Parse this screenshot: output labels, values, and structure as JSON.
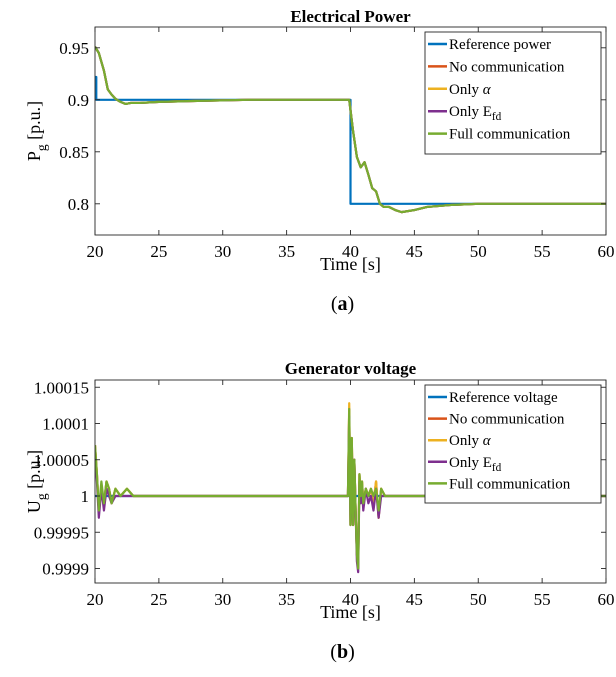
{
  "colors": {
    "reference": "#0072BD",
    "no_comm": "#D95319",
    "only_alpha": "#EDB120",
    "only_efd": "#7E2F8E",
    "full_comm": "#77AC30",
    "axis": "#262626"
  },
  "panels": [
    {
      "caption": "(a)",
      "caption_bold": "a",
      "chart_data": {
        "type": "line",
        "title": "Electrical Power",
        "xlabel": "Time [s]",
        "ylabel": "P_g [p.u.]",
        "xlim": [
          20,
          60
        ],
        "ylim": [
          0.77,
          0.97
        ],
        "xticks": [
          20,
          25,
          30,
          35,
          40,
          45,
          50,
          55,
          60
        ],
        "xtick_labels": [
          "20",
          "25",
          "30",
          "35",
          "40",
          "45",
          "50",
          "55",
          "60"
        ],
        "yticks": [
          0.8,
          0.85,
          0.9,
          0.95
        ],
        "ytick_labels": [
          "0.8",
          "0.85",
          "0.9",
          "0.95"
        ],
        "grid": false,
        "legend_position": "top-right",
        "series": [
          {
            "name": "Reference power",
            "key": "reference",
            "x": [
              20,
              20.1,
              20.1,
              40,
              40,
              60
            ],
            "y": [
              0.922,
              0.922,
              0.9,
              0.9,
              0.8,
              0.8
            ]
          },
          {
            "name": "No communication",
            "key": "no_comm",
            "x": [
              20,
              20.3,
              20.7,
              21.0,
              21.3,
              21.6,
              22.0,
              22.4,
              22.8,
              23.5,
              25,
              28,
              32,
              36,
              39.9,
              40.2,
              40.5,
              40.8,
              41.1,
              41.4,
              41.7,
              42.0,
              42.3,
              42.6,
              43.0,
              43.5,
              44,
              45,
              46,
              48,
              50,
              55,
              60
            ],
            "y": [
              0.951,
              0.945,
              0.928,
              0.91,
              0.905,
              0.901,
              0.898,
              0.896,
              0.897,
              0.897,
              0.898,
              0.899,
              0.9,
              0.9,
              0.9,
              0.87,
              0.845,
              0.835,
              0.84,
              0.828,
              0.815,
              0.812,
              0.8,
              0.797,
              0.797,
              0.794,
              0.792,
              0.794,
              0.797,
              0.799,
              0.8,
              0.8,
              0.8
            ]
          },
          {
            "name": "Only α",
            "key": "only_alpha",
            "x": [
              20,
              20.3,
              20.7,
              21.0,
              21.3,
              21.6,
              22.0,
              22.4,
              22.8,
              23.5,
              25,
              28,
              32,
              36,
              39.9,
              40.2,
              40.5,
              40.8,
              41.1,
              41.4,
              41.7,
              42.0,
              42.3,
              42.6,
              43.0,
              43.5,
              44,
              45,
              46,
              48,
              50,
              55,
              60
            ],
            "y": [
              0.951,
              0.945,
              0.928,
              0.91,
              0.905,
              0.901,
              0.898,
              0.896,
              0.897,
              0.897,
              0.898,
              0.899,
              0.9,
              0.9,
              0.9,
              0.87,
              0.845,
              0.835,
              0.84,
              0.828,
              0.815,
              0.812,
              0.8,
              0.797,
              0.797,
              0.794,
              0.792,
              0.794,
              0.797,
              0.799,
              0.8,
              0.8,
              0.8
            ]
          },
          {
            "name": "Only E_fd",
            "key": "only_efd",
            "x": [
              20,
              20.3,
              20.7,
              21.0,
              21.3,
              21.6,
              22.0,
              22.4,
              22.8,
              23.5,
              25,
              28,
              32,
              36,
              39.9,
              40.2,
              40.5,
              40.8,
              41.1,
              41.4,
              41.7,
              42.0,
              42.3,
              42.6,
              43.0,
              43.5,
              44,
              45,
              46,
              48,
              50,
              55,
              60
            ],
            "y": [
              0.951,
              0.945,
              0.928,
              0.91,
              0.905,
              0.901,
              0.898,
              0.896,
              0.897,
              0.897,
              0.898,
              0.899,
              0.9,
              0.9,
              0.9,
              0.87,
              0.845,
              0.835,
              0.84,
              0.828,
              0.815,
              0.812,
              0.8,
              0.797,
              0.797,
              0.794,
              0.792,
              0.794,
              0.797,
              0.799,
              0.8,
              0.8,
              0.8
            ]
          },
          {
            "name": "Full communication",
            "key": "full_comm",
            "x": [
              20,
              20.3,
              20.7,
              21.0,
              21.3,
              21.6,
              22.0,
              22.4,
              22.8,
              23.5,
              25,
              28,
              32,
              36,
              39.9,
              40.2,
              40.5,
              40.8,
              41.1,
              41.4,
              41.7,
              42.0,
              42.3,
              42.6,
              43.0,
              43.5,
              44,
              45,
              46,
              48,
              50,
              55,
              60
            ],
            "y": [
              0.951,
              0.945,
              0.928,
              0.91,
              0.905,
              0.901,
              0.898,
              0.896,
              0.897,
              0.897,
              0.898,
              0.899,
              0.9,
              0.9,
              0.9,
              0.87,
              0.845,
              0.835,
              0.84,
              0.828,
              0.815,
              0.812,
              0.8,
              0.797,
              0.797,
              0.794,
              0.792,
              0.794,
              0.797,
              0.799,
              0.8,
              0.8,
              0.8
            ]
          }
        ]
      }
    },
    {
      "caption": "(b)",
      "caption_bold": "b",
      "chart_data": {
        "type": "line",
        "title": "Generator voltage",
        "xlabel": "Time [s]",
        "ylabel": "U_g [p.u.]",
        "xlim": [
          20,
          60
        ],
        "ylim": [
          0.99988,
          1.00016
        ],
        "xticks": [
          20,
          25,
          30,
          35,
          40,
          45,
          50,
          55,
          60
        ],
        "xtick_labels": [
          "20",
          "25",
          "30",
          "35",
          "40",
          "45",
          "50",
          "55",
          "60"
        ],
        "yticks": [
          0.9999,
          0.99995,
          1.0,
          1.00005,
          1.0001,
          1.00015
        ],
        "ytick_labels": [
          "0.9999",
          "0.99995",
          "1",
          "1.00005",
          "1.0001",
          "1.00015"
        ],
        "grid": false,
        "legend_position": "top-right",
        "series": [
          {
            "name": "Reference voltage",
            "key": "reference",
            "x": [
              20,
              60
            ],
            "y": [
              1.0,
              1.0
            ]
          },
          {
            "name": "No communication",
            "key": "no_comm",
            "x": [
              20,
              20.15,
              20.3,
              20.5,
              20.7,
              20.9,
              21.1,
              21.3,
              21.6,
              22.0,
              22.5,
              23,
              24,
              26,
              30,
              35,
              39.8,
              39.9,
              40.0,
              40.1,
              40.2,
              40.3,
              40.4,
              40.5,
              40.6,
              40.7,
              40.8,
              40.9,
              41.0,
              41.2,
              41.4,
              41.6,
              41.8,
              42.0,
              42.2,
              42.4,
              42.7,
              43.0,
              44,
              46,
              50,
              55,
              60
            ],
            "y": [
              1.00007,
              1.00003,
              0.99998,
              1.00001,
              0.99999,
              1.00002,
              1.00001,
              0.99999,
              1.00001,
              1.0,
              1.00001,
              1.0,
              1.0,
              1.0,
              1.0,
              1.0,
              1.0,
              1.00012,
              0.99996,
              1.00008,
              0.99996,
              1.00005,
              0.99998,
              0.99992,
              0.9999,
              1.00003,
              1.0,
              1.00002,
              0.99999,
              1.00001,
              1.0,
              1.00001,
              0.99999,
              1.00002,
              0.99997,
              1.00001,
              1.0,
              1.0,
              1.0,
              1.0,
              1.0,
              1.0,
              1.0
            ]
          },
          {
            "name": "Only α",
            "key": "only_alpha",
            "x": [
              20,
              20.15,
              20.3,
              20.5,
              20.7,
              20.9,
              21.1,
              21.3,
              21.6,
              22.0,
              22.5,
              23,
              24,
              26,
              30,
              35,
              39.8,
              39.9,
              40.0,
              40.1,
              40.2,
              40.3,
              40.4,
              40.5,
              40.6,
              40.7,
              40.8,
              40.9,
              41.0,
              41.2,
              41.4,
              41.6,
              41.8,
              42.0,
              42.2,
              42.4,
              42.7,
              43.0,
              44,
              46,
              50,
              55,
              60
            ],
            "y": [
              1.00007,
              1.00003,
              0.99998,
              1.00001,
              0.99999,
              1.00002,
              1.00001,
              0.99999,
              1.00001,
              1.0,
              1.00001,
              1.0,
              1.0,
              1.0,
              1.0,
              1.0,
              1.0,
              1.000128,
              0.99996,
              1.00008,
              0.99996,
              1.00005,
              0.99998,
              0.99992,
              0.99991,
              1.00003,
              1.0,
              1.00002,
              0.99999,
              1.00001,
              1.0,
              1.00001,
              0.99999,
              1.00002,
              0.99997,
              1.00001,
              1.0,
              1.0,
              1.0,
              1.0,
              1.0,
              1.0,
              1.0
            ]
          },
          {
            "name": "Only E_fd",
            "key": "only_efd",
            "x": [
              20,
              20.15,
              20.3,
              20.5,
              20.7,
              20.9,
              21.1,
              21.3,
              21.6,
              22.0,
              22.5,
              23,
              24,
              26,
              30,
              35,
              39.8,
              39.9,
              40.0,
              40.1,
              40.2,
              40.3,
              40.4,
              40.5,
              40.6,
              40.7,
              40.8,
              40.9,
              41.0,
              41.2,
              41.4,
              41.6,
              41.8,
              42.0,
              42.2,
              42.4,
              42.7,
              43.0,
              44,
              46,
              50,
              55,
              60
            ],
            "y": [
              1.00006,
              1.00002,
              0.99997,
              1.00001,
              0.99998,
              1.00001,
              1.0,
              0.99999,
              1.0,
              1.0,
              1.0,
              1.0,
              1.0,
              1.0,
              1.0,
              1.0,
              1.0,
              1.00011,
              0.99996,
              1.00007,
              0.99996,
              1.00005,
              0.99998,
              0.99991,
              0.999895,
              1.00002,
              0.99999,
              1.00001,
              0.99998,
              1.00001,
              0.99999,
              1.0,
              0.99998,
              1.00001,
              0.99997,
              1.0,
              1.0,
              1.0,
              1.0,
              1.0,
              1.0,
              1.0,
              1.0
            ]
          },
          {
            "name": "Full communication",
            "key": "full_comm",
            "x": [
              20,
              20.15,
              20.3,
              20.5,
              20.7,
              20.9,
              21.1,
              21.3,
              21.6,
              22.0,
              22.5,
              23,
              24,
              26,
              30,
              35,
              39.8,
              39.9,
              40.0,
              40.1,
              40.2,
              40.3,
              40.4,
              40.5,
              40.6,
              40.7,
              40.8,
              40.9,
              41.0,
              41.2,
              41.4,
              41.6,
              41.8,
              42.0,
              42.2,
              42.4,
              42.7,
              43.0,
              44,
              46,
              50,
              55,
              60
            ],
            "y": [
              1.00007,
              1.00003,
              0.99998,
              1.00002,
              0.99999,
              1.00002,
              1.00001,
              0.99999,
              1.00001,
              1.0,
              1.00001,
              1.0,
              1.0,
              1.0,
              1.0,
              1.0,
              1.0,
              1.00012,
              0.99996,
              1.00008,
              0.99996,
              1.00005,
              0.99998,
              0.99992,
              0.9999,
              1.00003,
              1.0,
              1.00002,
              0.99999,
              1.00001,
              1.0,
              1.00001,
              1.0,
              1.00001,
              0.99998,
              1.00001,
              1.0,
              1.0,
              1.0,
              1.0,
              1.0,
              1.0,
              1.0
            ]
          }
        ]
      }
    }
  ]
}
